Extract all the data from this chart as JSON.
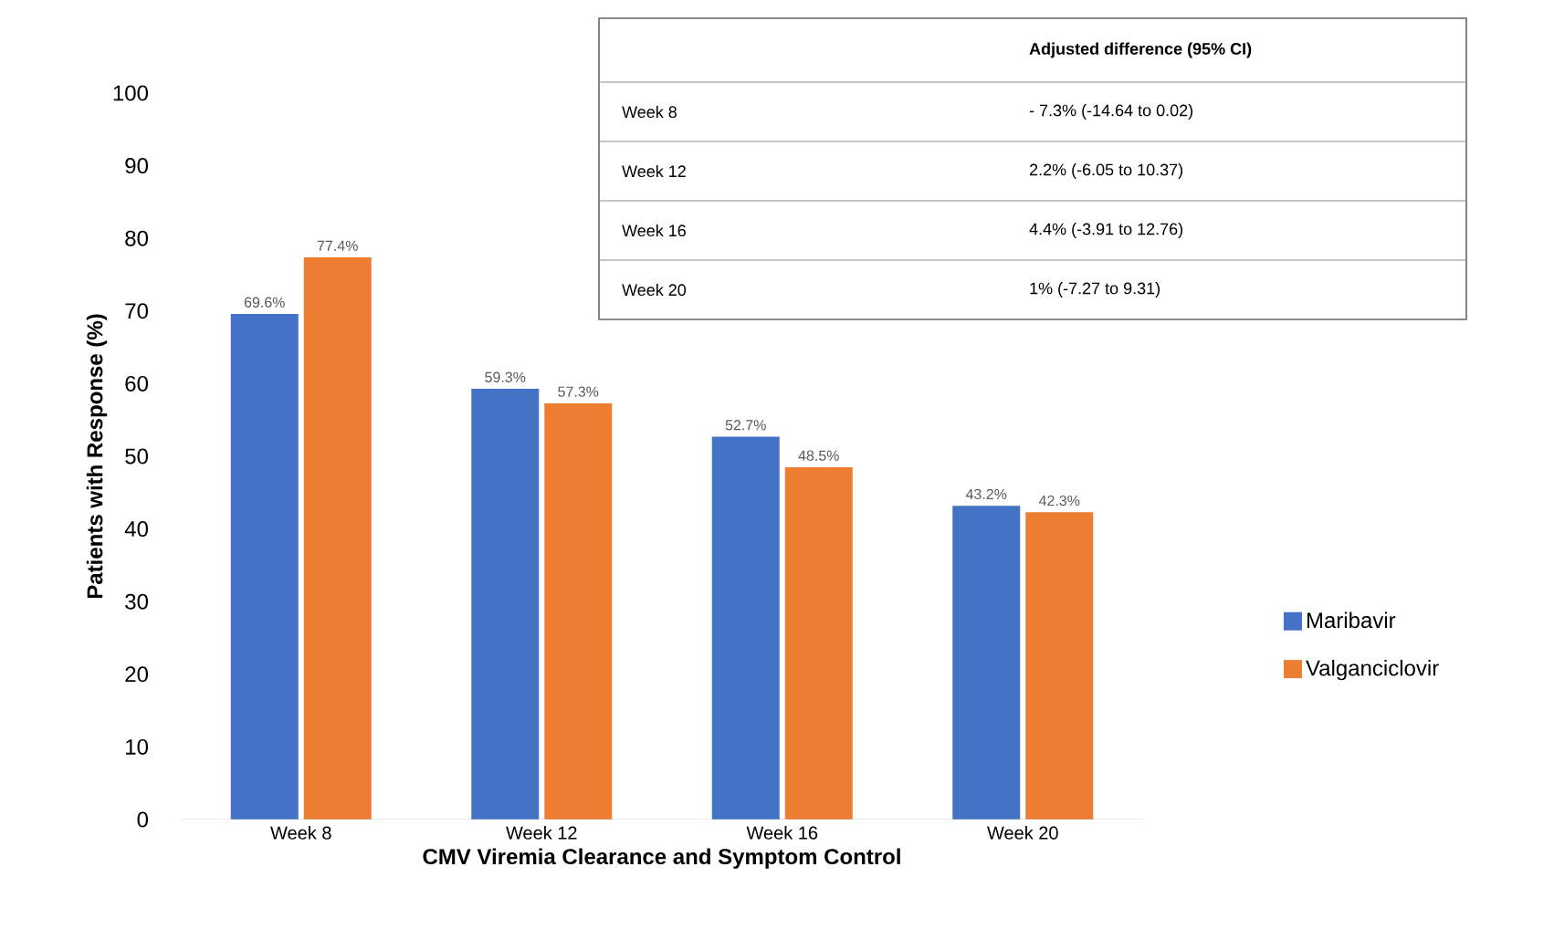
{
  "chart_data": {
    "type": "bar",
    "xlabel": "CMV Viremia Clearance and Symptom Control",
    "ylabel": "Patients with Response (%)",
    "categories": [
      "Week 8",
      "Week 12",
      "Week 16",
      "Week 20"
    ],
    "series": [
      {
        "name": "Maribavir",
        "color": "#4472c4",
        "values": [
          69.6,
          59.3,
          52.7,
          43.2
        ],
        "value_labels": [
          "69.6%",
          "59.3%",
          "52.7%",
          "43.2%"
        ]
      },
      {
        "name": "Valganciclovir",
        "color": "#ed7d31",
        "values": [
          77.4,
          57.3,
          48.5,
          42.3
        ],
        "value_labels": [
          "77.4%",
          "57.3%",
          "48.5%",
          "42.3%"
        ]
      }
    ],
    "ylim": [
      0,
      100
    ],
    "yticks": [
      0,
      10,
      20,
      30,
      40,
      50,
      60,
      70,
      80,
      90,
      100
    ],
    "grid": false,
    "legend": "right",
    "annotations": [
      "Adjusted difference (95% CI)",
      "Week 8",
      "- 7.3% (-14.64 to 0.02)",
      "Week 12",
      "2.2% (-6.05 to 10.37)",
      "Week 16",
      "4.4% (-3.91 to 12.76)",
      "Week 20",
      "1% (-7.27 to 9.31)"
    ]
  }
}
